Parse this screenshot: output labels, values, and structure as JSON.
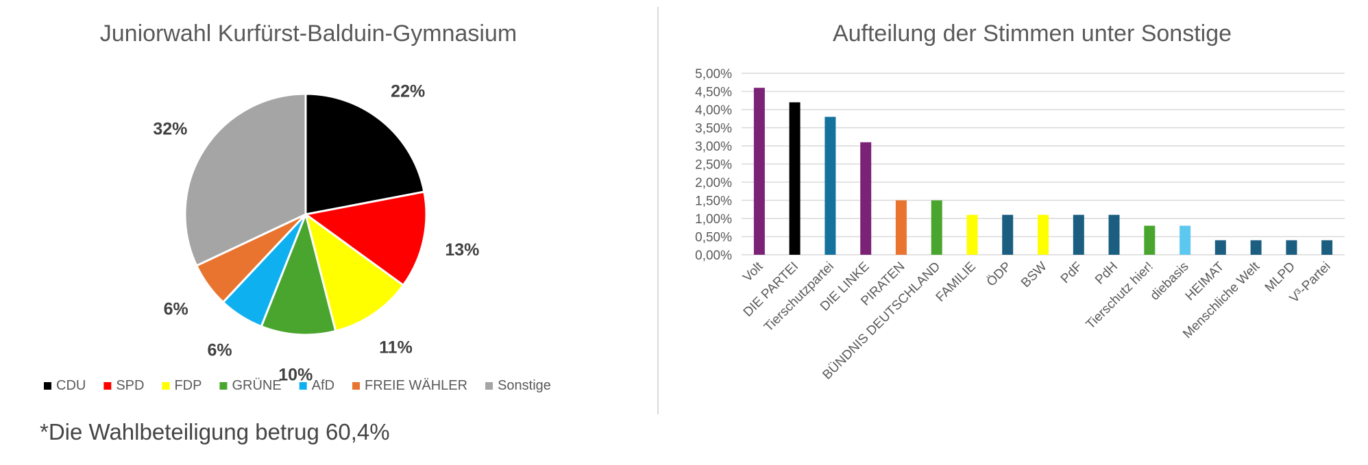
{
  "chart_data": [
    {
      "type": "pie",
      "title": "Juniorwahl Kurfürst-Balduin-Gymnasium",
      "categories": [
        "CDU",
        "SPD",
        "FDP",
        "GRÜNE",
        "AfD",
        "FREIE WÄHLER",
        "Sonstige"
      ],
      "values": [
        22,
        13,
        11,
        10,
        6,
        6,
        32
      ],
      "value_labels": [
        "22%",
        "13%",
        "11%",
        "10%",
        "6%",
        "6%",
        "32%"
      ],
      "colors": [
        "#000000",
        "#ff0000",
        "#ffff00",
        "#4aa52f",
        "#0fb0f0",
        "#e8742f",
        "#a5a5a5"
      ],
      "legend_position": "bottom"
    },
    {
      "type": "bar",
      "title": "Aufteilung der Stimmen unter Sonstige",
      "categories": [
        "Volt",
        "DIE PARTEI",
        "Tierschutzpartei",
        "DIE LINKE",
        "PIRATEN",
        "BÜNDNIS DEUTSCHLAND",
        "FAMILIE",
        "ÖDP",
        "BSW",
        "PdF",
        "PdH",
        "Tierschutz hier!",
        "diebasis",
        "HEIMAT",
        "Menschliche Welt",
        "MLPD",
        "V³-Partei"
      ],
      "values": [
        4.6,
        4.2,
        3.8,
        3.1,
        1.5,
        1.5,
        1.1,
        1.1,
        1.1,
        1.1,
        1.1,
        0.8,
        0.8,
        0.4,
        0.4,
        0.4,
        0.4
      ],
      "colors": [
        "#7b2277",
        "#000000",
        "#15729d",
        "#7b2277",
        "#e8742f",
        "#4aa52f",
        "#ffff00",
        "#1b5e80",
        "#ffff00",
        "#1b5e80",
        "#1b5e80",
        "#4aa52f",
        "#5dc8ef",
        "#1b5e80",
        "#1b5e80",
        "#1b5e80",
        "#1b5e80"
      ],
      "yticks": [
        "0,00%",
        "0,50%",
        "1,00%",
        "1,50%",
        "2,00%",
        "2,50%",
        "3,00%",
        "3,50%",
        "4,00%",
        "4,50%",
        "5,00%"
      ],
      "ylim": [
        0,
        5
      ],
      "grid": true
    }
  ],
  "footnote": "*Die Wahlbeteiligung betrug 60,4%"
}
